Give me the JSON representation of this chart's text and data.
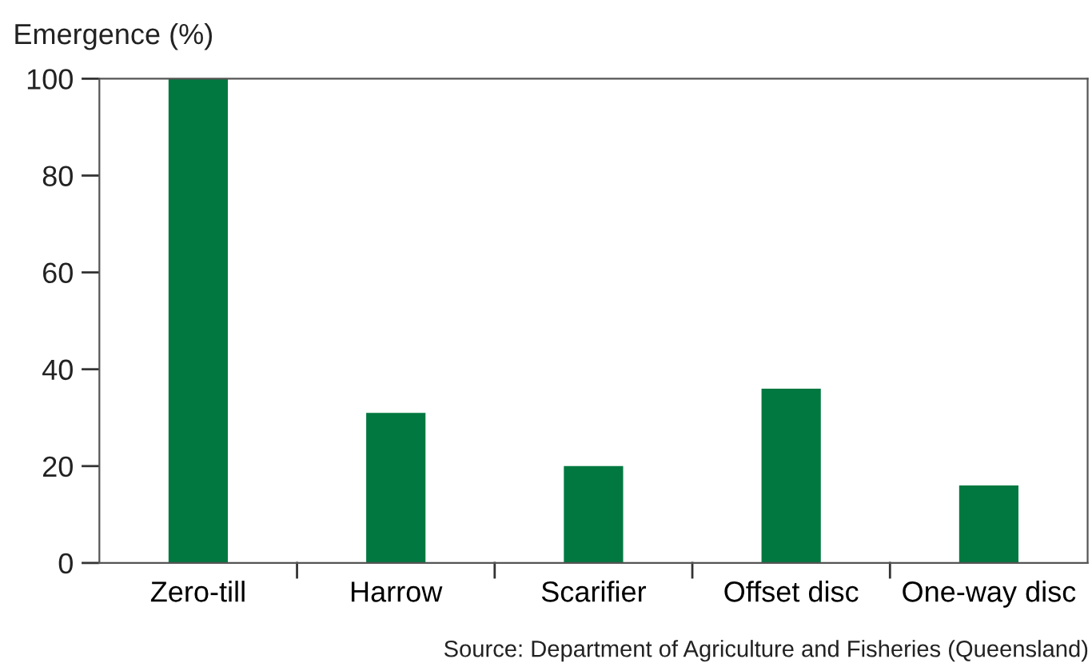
{
  "chart_data": {
    "type": "bar",
    "ylabel": "Emergence (%)",
    "categories": [
      "Zero-till",
      "Harrow",
      "Scarifier",
      "Offset disc",
      "One-way disc"
    ],
    "values": [
      100,
      31,
      20,
      36,
      16
    ],
    "color": "#007840",
    "ylim": [
      0,
      100
    ],
    "yticks": [
      0,
      20,
      40,
      60,
      80,
      100
    ],
    "grid": false,
    "legend": false,
    "annotations": [
      "Source: Department of Agriculture and Fisheries (Queensland)"
    ]
  }
}
